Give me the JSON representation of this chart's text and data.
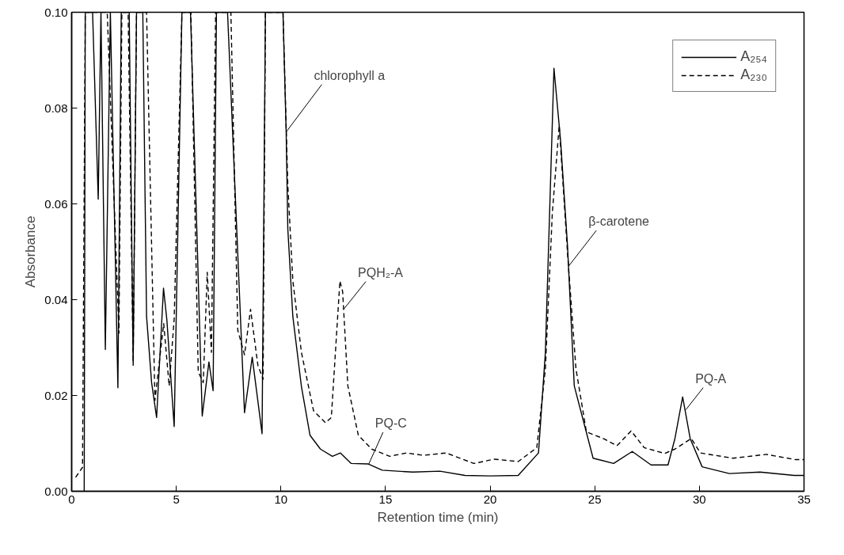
{
  "chart_data": {
    "type": "line",
    "xlabel": "Retention time (min)",
    "ylabel": "Absorbance",
    "xlim": [
      0,
      35
    ],
    "ylim": [
      0,
      0.1
    ],
    "xticks": [
      0,
      5,
      10,
      15,
      20,
      25,
      30,
      35
    ],
    "yticks": [
      {
        "value": 0,
        "label": "0.00"
      },
      {
        "value": 0.02,
        "label": "0.02"
      },
      {
        "value": 0.04,
        "label": "0.04"
      },
      {
        "value": 0.06,
        "label": "0.06"
      },
      {
        "value": 0.08,
        "label": "0.08"
      },
      {
        "value": 0.1,
        "label": "0.10"
      }
    ],
    "grid": false,
    "legend": "top right",
    "marker": "none",
    "series": [
      {
        "name": "A₂₅₄",
        "color": "#000000",
        "line_style": "solid",
        "x": [
          0.6,
          0.65,
          0.7,
          1.0,
          1.27,
          1.4,
          1.61,
          1.85,
          2.21,
          2.37,
          2.45,
          2.75,
          2.94,
          3.1,
          3.4,
          3.58,
          3.82,
          4.06,
          4.39,
          4.55,
          4.9,
          5.27,
          5.4,
          5.6,
          5.68,
          6.24,
          6.56,
          6.76,
          6.92,
          7.1,
          7.3,
          7.45,
          8.26,
          8.63,
          9.1,
          9.26,
          9.5,
          10.0,
          10.1,
          10.25,
          10.33,
          10.57,
          10.98,
          11.39,
          11.89,
          12.46,
          12.84,
          13.36,
          14.18,
          14.84,
          16.3,
          17.6,
          18.8,
          20.0,
          21.34,
          22.31,
          22.64,
          23.05,
          23.37,
          23.7,
          24.02,
          24.92,
          25.9,
          26.79,
          27.69,
          28.5,
          28.83,
          29.2,
          29.56,
          30.13,
          31.43,
          32.9,
          34.53,
          35.0
        ],
        "values": [
          0.0,
          0.1,
          0.1,
          0.1,
          0.061,
          0.1,
          0.0296,
          0.1,
          0.0216,
          0.1,
          0.1,
          0.1,
          0.0263,
          0.1,
          0.1,
          0.0365,
          0.0227,
          0.0154,
          0.0424,
          0.0358,
          0.0135,
          0.1,
          0.1,
          0.1,
          0.1,
          0.0157,
          0.027,
          0.021,
          0.1,
          0.1,
          0.1,
          0.1,
          0.0164,
          0.028,
          0.012,
          0.1,
          0.1,
          0.1,
          0.1,
          0.0753,
          0.0548,
          0.0365,
          0.0219,
          0.0117,
          0.0088,
          0.0073,
          0.008,
          0.0058,
          0.0057,
          0.0044,
          0.004,
          0.0042,
          0.0033,
          0.0032,
          0.0033,
          0.008,
          0.029,
          0.0883,
          0.073,
          0.051,
          0.022,
          0.0069,
          0.0058,
          0.0083,
          0.0055,
          0.0055,
          0.011,
          0.0197,
          0.011,
          0.0051,
          0.0037,
          0.004,
          0.0033,
          0.0033
        ]
      },
      {
        "name": "A₂₃₀",
        "color": "#000000",
        "line_style": "dashed",
        "x": [
          0.19,
          0.52,
          0.65,
          0.8,
          1.2,
          1.5,
          1.7,
          2.26,
          2.4,
          2.7,
          2.94,
          3.1,
          3.45,
          3.58,
          3.98,
          4.4,
          4.66,
          4.9,
          5.27,
          5.5,
          5.7,
          6.05,
          6.29,
          6.48,
          6.68,
          6.88,
          7.2,
          7.61,
          7.94,
          8.26,
          8.55,
          8.9,
          9.15,
          9.26,
          9.6,
          10.1,
          10.33,
          10.57,
          10.98,
          11.56,
          12.13,
          12.41,
          12.82,
          12.95,
          13.2,
          13.7,
          14.34,
          15.2,
          16.0,
          16.8,
          17.9,
          19.22,
          20.2,
          21.34,
          22.23,
          22.64,
          22.97,
          23.3,
          23.7,
          24.1,
          24.6,
          25.41,
          26.06,
          26.74,
          27.36,
          28.34,
          28.83,
          29.61,
          30.05,
          31.6,
          33.2,
          34.6,
          35.0
        ],
        "values": [
          0.0029,
          0.005,
          0.1,
          0.1,
          0.1,
          0.1,
          0.1,
          0.033,
          0.1,
          0.1,
          0.027,
          0.1,
          0.1,
          0.1,
          0.019,
          0.035,
          0.022,
          0.036,
          0.1,
          0.1,
          0.1,
          0.0249,
          0.0227,
          0.0457,
          0.029,
          0.1,
          0.1,
          0.1,
          0.0336,
          0.0285,
          0.038,
          0.0263,
          0.0234,
          0.1,
          0.1,
          0.1,
          0.064,
          0.044,
          0.029,
          0.0168,
          0.0143,
          0.0154,
          0.0439,
          0.0417,
          0.022,
          0.0117,
          0.0088,
          0.0073,
          0.008,
          0.0075,
          0.008,
          0.0058,
          0.0067,
          0.0062,
          0.0091,
          0.0256,
          0.058,
          0.0764,
          0.0496,
          0.0256,
          0.0124,
          0.011,
          0.0095,
          0.0126,
          0.0091,
          0.0079,
          0.0088,
          0.011,
          0.008,
          0.0069,
          0.0077,
          0.0066,
          0.0066
        ]
      }
    ],
    "annotations": [
      {
        "text": "chlorophyll a",
        "x": 10.25,
        "y": 0.075
      },
      {
        "text": "PQH₂-A",
        "x": 13.0,
        "y": 0.038
      },
      {
        "text": "PQ-C",
        "x": 14.2,
        "y": 0.0057
      },
      {
        "text": "β-carotene",
        "x": 23.75,
        "y": 0.047
      },
      {
        "text": "PQ-A",
        "x": 29.35,
        "y": 0.017
      }
    ]
  }
}
